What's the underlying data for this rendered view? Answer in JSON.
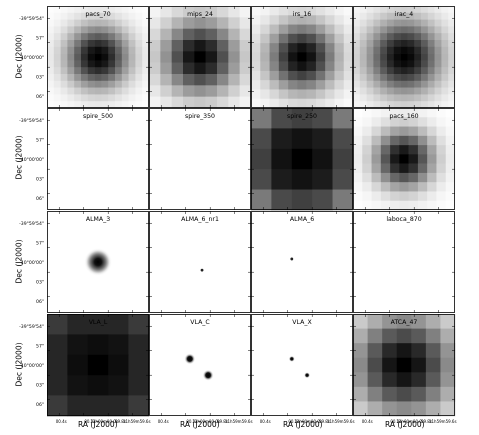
{
  "figure": {
    "ylabel": "Dec (J2000)",
    "xlabel": "RA (J2000)",
    "y_ticks": [
      "-39°59'54\"",
      "57\"",
      "-40°00'00\"",
      "03\"",
      "06\""
    ],
    "x_ticks": [
      "00.4s",
      "00.2s",
      "12h00m00.0s",
      "59.8s",
      "11h59m59.6s"
    ]
  },
  "panels": [
    {
      "title": "pacs_70",
      "kind": "blob",
      "texture": "cells",
      "cells": 15,
      "spread": 3.2
    },
    {
      "title": "mips_24",
      "kind": "blob",
      "texture": "cells",
      "cells": 9,
      "spread": 2.3
    },
    {
      "title": "irs_16",
      "kind": "blob",
      "texture": "cells",
      "cells": 11,
      "spread": 2.6
    },
    {
      "title": "irac_4",
      "kind": "blob",
      "texture": "cells",
      "cells": 15,
      "spread": 3.8
    },
    {
      "title": "spire_500",
      "kind": "blank"
    },
    {
      "title": "spire_350",
      "kind": "blank"
    },
    {
      "title": "spire_250",
      "kind": "grid",
      "shades": [
        [
          "#7a7a7a",
          "#4a4a4a",
          "#404040",
          "#4a4a4a",
          "#7a7a7a"
        ],
        [
          "#4a4a4a",
          "#1c1c1c",
          "#121212",
          "#1c1c1c",
          "#4a4a4a"
        ],
        [
          "#404040",
          "#121212",
          "#000000",
          "#121212",
          "#404040"
        ],
        [
          "#4a4a4a",
          "#1c1c1c",
          "#121212",
          "#1c1c1c",
          "#4a4a4a"
        ],
        [
          "#7a7a7a",
          "#4a4a4a",
          "#404040",
          "#4a4a4a",
          "#7a7a7a"
        ]
      ]
    },
    {
      "title": "pacs_160",
      "kind": "blob",
      "texture": "cells",
      "cells": 11,
      "spread": 2.2
    },
    {
      "title": "ALMA_3",
      "kind": "blob",
      "texture": "smooth",
      "spread": 1.0
    },
    {
      "title": "ALMA_6_nr1",
      "kind": "points",
      "points": [
        {
          "x": 0.52,
          "y": 0.58,
          "r": 1.4
        }
      ]
    },
    {
      "title": "ALMA_6",
      "kind": "points",
      "points": [
        {
          "x": 0.4,
          "y": 0.47,
          "r": 1.4
        }
      ]
    },
    {
      "title": "laboca_870",
      "kind": "blank"
    },
    {
      "title": "VLA_L",
      "kind": "grid",
      "shades": [
        [
          "#3a3a3a",
          "#262626",
          "#262626",
          "#262626",
          "#3a3a3a"
        ],
        [
          "#262626",
          "#121212",
          "#0d0d0d",
          "#121212",
          "#262626"
        ],
        [
          "#262626",
          "#0d0d0d",
          "#000000",
          "#0d0d0d",
          "#262626"
        ],
        [
          "#262626",
          "#121212",
          "#0d0d0d",
          "#121212",
          "#262626"
        ],
        [
          "#3a3a3a",
          "#262626",
          "#262626",
          "#262626",
          "#3a3a3a"
        ]
      ]
    },
    {
      "title": "VLA_C",
      "kind": "points",
      "points": [
        {
          "x": 0.4,
          "y": 0.44,
          "r": 5.5
        },
        {
          "x": 0.58,
          "y": 0.6,
          "r": 5.5
        }
      ]
    },
    {
      "title": "VLA_X",
      "kind": "points",
      "points": [
        {
          "x": 0.4,
          "y": 0.44,
          "r": 3.0
        },
        {
          "x": 0.55,
          "y": 0.6,
          "r": 3.0
        }
      ]
    },
    {
      "title": "ATCA_47",
      "kind": "blob",
      "texture": "cells",
      "cells": 7,
      "spread": 2.4
    }
  ]
}
